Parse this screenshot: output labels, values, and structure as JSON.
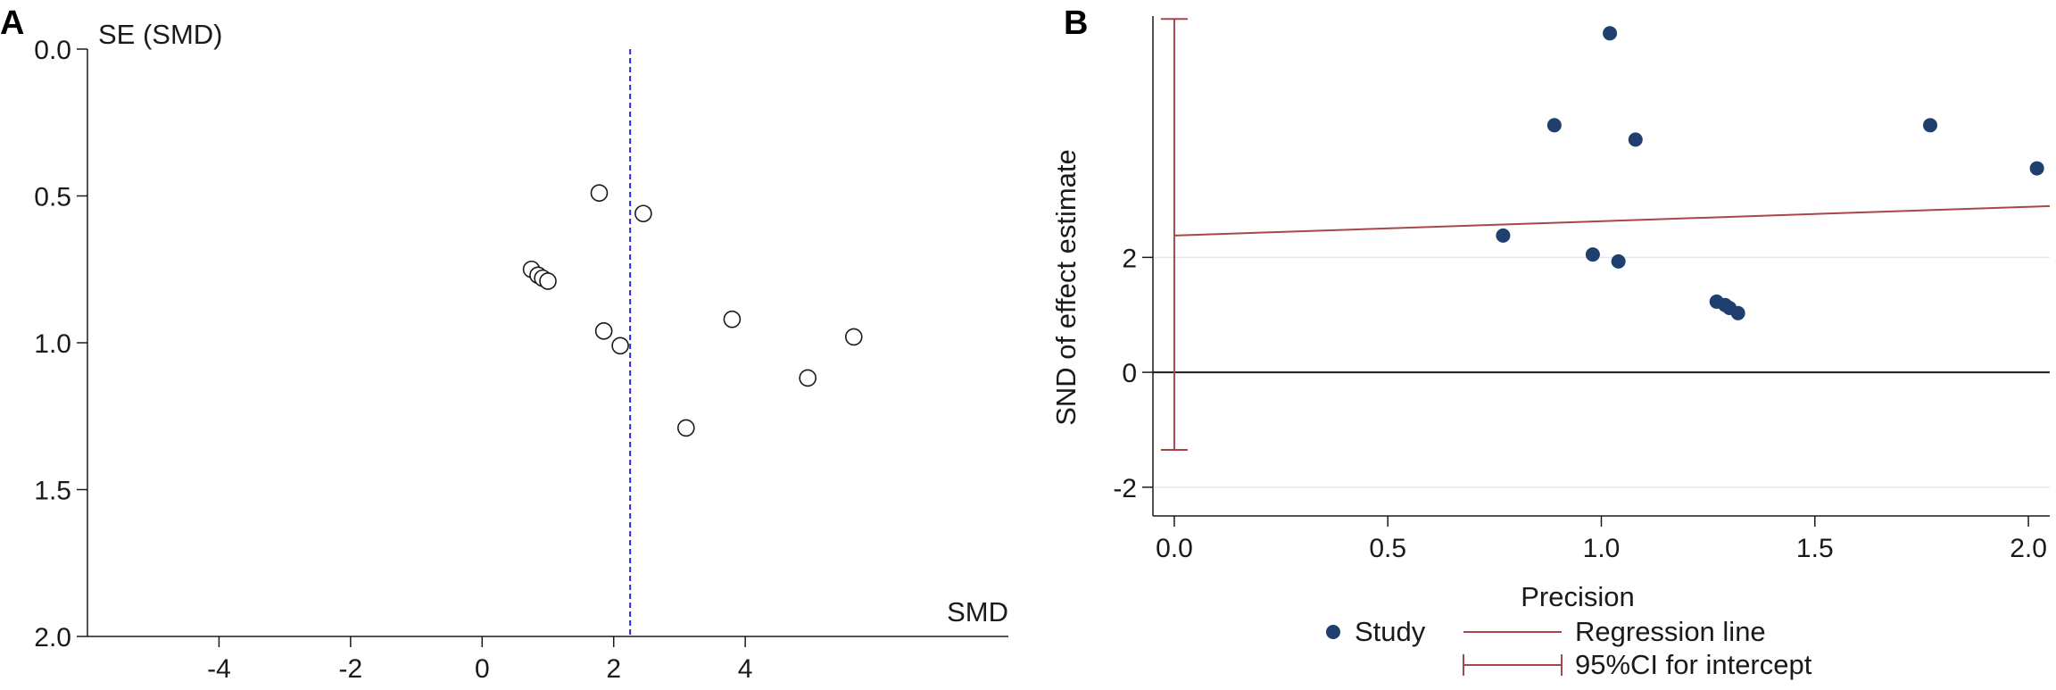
{
  "chart_data": [
    {
      "panel": "A",
      "type": "scatter",
      "xlabel": "SMD",
      "ylabel": "SE (SMD)",
      "y_reversed": true,
      "xlim": [
        -6,
        8
      ],
      "ylim": [
        0,
        2
      ],
      "xticks": [
        "-4",
        "-2",
        "0",
        "2",
        "4"
      ],
      "yticks": [
        "0.0",
        "0.5",
        "1.0",
        "1.5",
        "2.0"
      ],
      "reference_line_x": 2.25,
      "reference_line_color": "#2b2bd6",
      "marker": "open-circle",
      "points": [
        {
          "x": 1.78,
          "y": 0.49
        },
        {
          "x": 2.45,
          "y": 0.56
        },
        {
          "x": 0.75,
          "y": 0.75
        },
        {
          "x": 0.85,
          "y": 0.77
        },
        {
          "x": 0.92,
          "y": 0.78
        },
        {
          "x": 1.0,
          "y": 0.79
        },
        {
          "x": 1.85,
          "y": 0.96
        },
        {
          "x": 2.1,
          "y": 1.01
        },
        {
          "x": 3.8,
          "y": 0.92
        },
        {
          "x": 5.65,
          "y": 0.98
        },
        {
          "x": 4.95,
          "y": 1.12
        },
        {
          "x": 3.1,
          "y": 1.29
        }
      ]
    },
    {
      "panel": "B",
      "type": "scatter",
      "xlabel": "Precision",
      "ylabel": "SND of effect estimate",
      "xlim": [
        -0.05,
        2.05
      ],
      "ylim": [
        -2.5,
        6.2
      ],
      "xticks": [
        "0.0",
        "0.5",
        "1.0",
        "1.5",
        "2.0"
      ],
      "yticks": [
        "-2",
        "0",
        "2"
      ],
      "grid": true,
      "zero_line": true,
      "regression_line": {
        "intercept": 2.38,
        "slope": 0.25
      },
      "ci_intercept": [
        -1.35,
        6.15
      ],
      "point_color": "#1f3f6e",
      "line_color": "#a8474a",
      "points": [
        {
          "x": 1.02,
          "y": 5.9
        },
        {
          "x": 0.89,
          "y": 4.3
        },
        {
          "x": 1.08,
          "y": 4.05
        },
        {
          "x": 1.77,
          "y": 4.3
        },
        {
          "x": 2.02,
          "y": 3.55
        },
        {
          "x": 0.77,
          "y": 2.38
        },
        {
          "x": 0.98,
          "y": 2.05
        },
        {
          "x": 1.04,
          "y": 1.93
        },
        {
          "x": 1.27,
          "y": 1.23
        },
        {
          "x": 1.29,
          "y": 1.17
        },
        {
          "x": 1.3,
          "y": 1.12
        },
        {
          "x": 1.32,
          "y": 1.03
        }
      ],
      "legend": [
        {
          "label": "Study",
          "kind": "point"
        },
        {
          "label": "Regression line",
          "kind": "line"
        },
        {
          "label": "95%CI for intercept",
          "kind": "errorbar"
        }
      ],
      "legend_position": "bottom"
    }
  ]
}
